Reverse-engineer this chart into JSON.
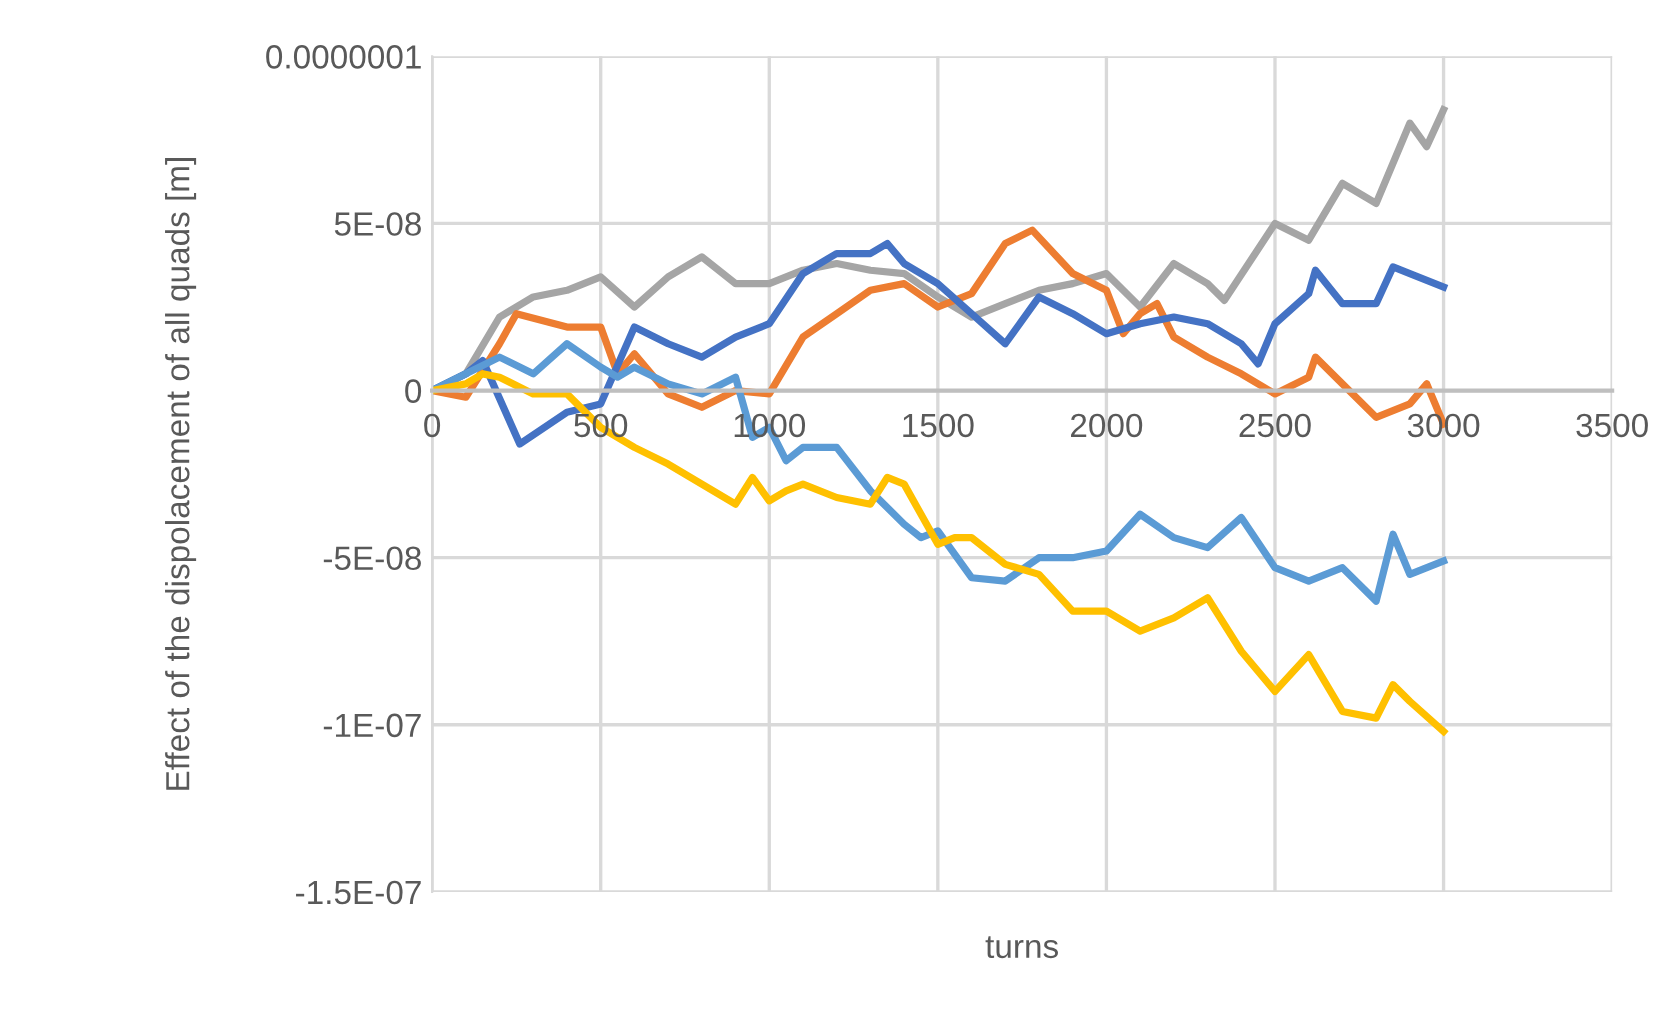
{
  "chart_data": {
    "type": "line",
    "xlabel": "turns",
    "ylabel": "Effect of the dispolacement of all quads [m]",
    "xlim": [
      0,
      3500
    ],
    "xticks": [
      0,
      500,
      1000,
      1500,
      2000,
      2500,
      3000,
      3500
    ],
    "ylim": [
      -1.5e-07,
      1e-07
    ],
    "yticks": [
      {
        "value": 1e-07,
        "label": "0.0000001"
      },
      {
        "value": 5e-08,
        "label": "5E-08"
      },
      0,
      {
        "value": -5e-08,
        "label": "-5E-08"
      },
      {
        "value": -1e-07,
        "label": "-1E-07"
      },
      {
        "value": -1.5e-07,
        "label": "-1.5E-07"
      }
    ],
    "grid": true,
    "legend": false,
    "marker": "none",
    "line_style": "solid",
    "series": [
      {
        "color": "#a5a5a5",
        "x": [
          0,
          100,
          200,
          300,
          400,
          500,
          600,
          700,
          800,
          900,
          1000,
          1100,
          1200,
          1300,
          1400,
          1500,
          1600,
          1700,
          1800,
          1900,
          2000,
          2100,
          2200,
          2300,
          2350,
          2500,
          2600,
          2700,
          2800,
          2900,
          2950,
          3000
        ],
        "values": [
          0,
          5e-09,
          2.2e-08,
          2.8e-08,
          3e-08,
          3.4e-08,
          2.5e-08,
          3.4e-08,
          4e-08,
          3.2e-08,
          3.2e-08,
          3.6e-08,
          3.8e-08,
          3.6e-08,
          3.5e-08,
          2.8e-08,
          2.2e-08,
          2.6e-08,
          3e-08,
          3.2e-08,
          3.5e-08,
          2.5e-08,
          3.8e-08,
          3.2e-08,
          2.7e-08,
          5e-08,
          4.5e-08,
          6.2e-08,
          5.6e-08,
          8e-08,
          7.3e-08,
          8.4e-08
        ]
      },
      {
        "color": "#ed7d31",
        "x": [
          0,
          100,
          200,
          250,
          400,
          500,
          550,
          600,
          700,
          800,
          900,
          1000,
          1100,
          1200,
          1300,
          1400,
          1500,
          1600,
          1700,
          1780,
          1900,
          2000,
          2050,
          2100,
          2150,
          2200,
          2300,
          2400,
          2500,
          2600,
          2620,
          2700,
          2800,
          2900,
          2950,
          3000
        ],
        "values": [
          0,
          -2e-09,
          1.4e-08,
          2.3e-08,
          1.9e-08,
          1.9e-08,
          5e-09,
          1.1e-08,
          -1e-09,
          -5e-09,
          0,
          -1e-09,
          1.6e-08,
          2.3e-08,
          3e-08,
          3.2e-08,
          2.5e-08,
          2.9e-08,
          4.4e-08,
          4.8e-08,
          3.5e-08,
          3e-08,
          1.7e-08,
          2.3e-08,
          2.6e-08,
          1.6e-08,
          1e-08,
          5e-09,
          -1e-09,
          4e-09,
          1e-08,
          2e-09,
          -8e-09,
          -4e-09,
          2e-09,
          -1e-08
        ]
      },
      {
        "color": "#4472c4",
        "x": [
          0,
          100,
          150,
          260,
          400,
          500,
          600,
          700,
          800,
          900,
          1000,
          1100,
          1200,
          1300,
          1350,
          1400,
          1500,
          1600,
          1700,
          1800,
          1900,
          2000,
          2100,
          2200,
          2300,
          2400,
          2450,
          2500,
          2600,
          2620,
          2700,
          2800,
          2850,
          2900,
          3000
        ],
        "values": [
          0,
          5e-09,
          9e-09,
          -1.6e-08,
          -6.5e-09,
          -4e-09,
          1.9e-08,
          1.4e-08,
          1e-08,
          1.6e-08,
          2e-08,
          3.5e-08,
          4.1e-08,
          4.1e-08,
          4.4e-08,
          3.8e-08,
          3.2e-08,
          2.3e-08,
          1.4e-08,
          2.8e-08,
          2.3e-08,
          1.7e-08,
          2e-08,
          2.2e-08,
          2e-08,
          1.4e-08,
          8e-09,
          2e-08,
          2.9e-08,
          3.6e-08,
          2.6e-08,
          2.6e-08,
          3.7e-08,
          3.5e-08,
          3.1e-08
        ]
      },
      {
        "color": "#5b9bd5",
        "x": [
          0,
          100,
          200,
          300,
          400,
          500,
          550,
          600,
          700,
          800,
          900,
          950,
          1000,
          1050,
          1100,
          1200,
          1300,
          1400,
          1450,
          1500,
          1600,
          1700,
          1800,
          1900,
          2000,
          2100,
          2200,
          2300,
          2400,
          2500,
          2600,
          2700,
          2800,
          2850,
          2900,
          3000
        ],
        "values": [
          0,
          5e-09,
          1e-08,
          5e-09,
          1.4e-08,
          7e-09,
          4e-09,
          7e-09,
          2e-09,
          -1e-09,
          4e-09,
          -1.4e-08,
          -1.1e-08,
          -2.1e-08,
          -1.7e-08,
          -1.7e-08,
          -3e-08,
          -4e-08,
          -4.4e-08,
          -4.2e-08,
          -5.6e-08,
          -5.7e-08,
          -5e-08,
          -5e-08,
          -4.8e-08,
          -3.7e-08,
          -4.4e-08,
          -4.7e-08,
          -3.8e-08,
          -5.3e-08,
          -5.7e-08,
          -5.3e-08,
          -6.3e-08,
          -4.3e-08,
          -5.5e-08,
          -5.1e-08
        ]
      },
      {
        "color": "#ffc000",
        "x": [
          0,
          100,
          150,
          200,
          300,
          400,
          500,
          600,
          700,
          800,
          900,
          950,
          1000,
          1050,
          1100,
          1200,
          1300,
          1350,
          1400,
          1500,
          1550,
          1600,
          1700,
          1800,
          1900,
          2000,
          2100,
          2200,
          2300,
          2400,
          2500,
          2600,
          2700,
          2800,
          2850,
          2900,
          3000
        ],
        "values": [
          0,
          2e-09,
          5e-09,
          4e-09,
          -1e-09,
          -1e-09,
          -1.1e-08,
          -1.7e-08,
          -2.2e-08,
          -2.8e-08,
          -3.4e-08,
          -2.6e-08,
          -3.3e-08,
          -3e-08,
          -2.8e-08,
          -3.2e-08,
          -3.4e-08,
          -2.6e-08,
          -2.8e-08,
          -4.6e-08,
          -4.4e-08,
          -4.4e-08,
          -5.2e-08,
          -5.5e-08,
          -6.6e-08,
          -6.6e-08,
          -7.2e-08,
          -6.8e-08,
          -6.2e-08,
          -7.8e-08,
          -9e-08,
          -7.9e-08,
          -9.6e-08,
          -9.8e-08,
          -8.8e-08,
          -9.3e-08,
          -1.02e-07
        ]
      }
    ]
  }
}
